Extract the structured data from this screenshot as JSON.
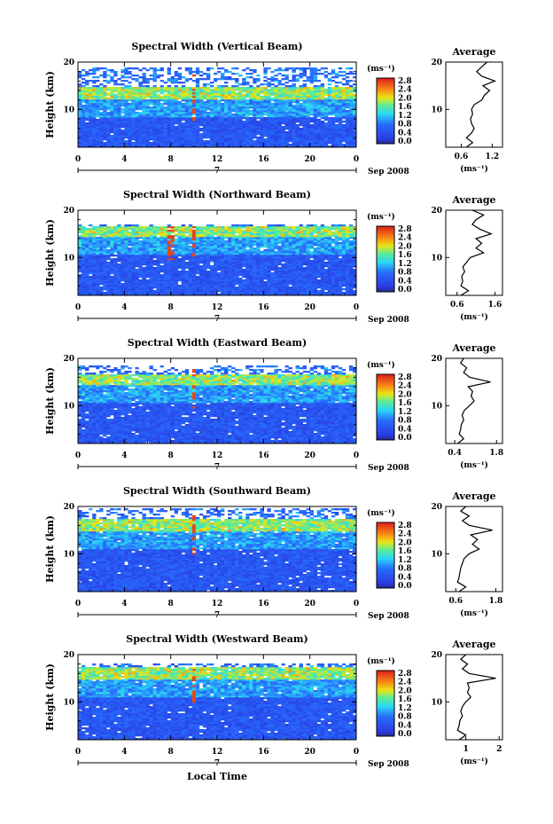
{
  "figure": {
    "xlabel": "Local Time",
    "ylabel": "Height (km)",
    "date_label": "Sep 2008",
    "day_label": "7",
    "colorbar_unit": "(ms⁻¹)",
    "colorbar_ticks": [
      "2.8",
      "2.4",
      "2.0",
      "1.6",
      "1.2",
      "0.8",
      "0.4",
      "0.0"
    ],
    "avg_title": "Average",
    "avg_xlabel": "(ms⁻¹)",
    "colors": {
      "low": "#3a2ab0",
      "blue": "#2850e8",
      "cyan": "#20d8f0",
      "yellow": "#f0e000",
      "red": "#e83820"
    }
  },
  "chart_data": [
    {
      "type": "heatmap",
      "title": "Spectral Width (Vertical Beam)",
      "x_ticks": [
        "0",
        "4",
        "8",
        "12",
        "16",
        "20",
        "0"
      ],
      "xlim": [
        0,
        24
      ],
      "ylim": [
        2,
        20
      ],
      "y_ticks": [
        "20",
        "10"
      ],
      "clim": [
        0,
        3.0
      ],
      "features": {
        "noise_top": 19,
        "layer_km": 13.5,
        "spike_hours": [
          10
        ]
      },
      "average": {
        "x_ticks": [
          "0.6",
          "1.2"
        ],
        "xlim": [
          0.3,
          1.4
        ],
        "profile": [
          [
            0.7,
            2
          ],
          [
            0.82,
            3
          ],
          [
            0.7,
            4
          ],
          [
            0.8,
            5
          ],
          [
            0.85,
            6
          ],
          [
            0.8,
            7
          ],
          [
            0.78,
            8
          ],
          [
            0.82,
            9
          ],
          [
            0.8,
            10
          ],
          [
            0.85,
            11
          ],
          [
            1.0,
            12
          ],
          [
            1.05,
            13
          ],
          [
            1.15,
            14
          ],
          [
            1.02,
            15
          ],
          [
            1.25,
            16
          ],
          [
            1.0,
            17
          ],
          [
            0.9,
            18
          ],
          [
            1.0,
            19
          ],
          [
            1.1,
            20
          ]
        ]
      }
    },
    {
      "type": "heatmap",
      "title": "Spectral Width (Northward Beam)",
      "x_ticks": [
        "0",
        "4",
        "8",
        "12",
        "16",
        "20",
        "0"
      ],
      "xlim": [
        0,
        24
      ],
      "ylim": [
        2,
        20
      ],
      "y_ticks": [
        "20",
        "10"
      ],
      "clim": [
        0,
        3.0
      ],
      "features": {
        "noise_top": 17,
        "layer_km": 15.5,
        "spike_hours": [
          8,
          10
        ]
      },
      "average": {
        "x_ticks": [
          "0.6",
          "1.6"
        ],
        "xlim": [
          0.3,
          1.8
        ],
        "profile": [
          [
            0.7,
            2
          ],
          [
            0.9,
            3
          ],
          [
            0.7,
            4
          ],
          [
            0.75,
            5
          ],
          [
            0.72,
            6
          ],
          [
            0.8,
            7
          ],
          [
            0.75,
            8
          ],
          [
            0.85,
            9
          ],
          [
            0.95,
            10
          ],
          [
            1.3,
            11
          ],
          [
            1.1,
            12
          ],
          [
            1.25,
            13
          ],
          [
            1.1,
            14
          ],
          [
            1.5,
            15
          ],
          [
            1.2,
            16
          ],
          [
            1.0,
            17
          ],
          [
            1.1,
            18
          ],
          [
            1.3,
            19
          ],
          [
            1.0,
            20
          ]
        ]
      }
    },
    {
      "type": "heatmap",
      "title": "Spectral Width (Eastward Beam)",
      "x_ticks": [
        "0",
        "4",
        "8",
        "12",
        "16",
        "20",
        "0"
      ],
      "xlim": [
        0,
        24
      ],
      "ylim": [
        2,
        20
      ],
      "y_ticks": [
        "20",
        "10"
      ],
      "clim": [
        0,
        3.0
      ],
      "features": {
        "noise_top": 18.5,
        "layer_km": 15.5,
        "spike_hours": [
          10
        ]
      },
      "average": {
        "x_ticks": [
          "0.4",
          "1.8"
        ],
        "xlim": [
          0.1,
          2.0
        ],
        "profile": [
          [
            0.5,
            2
          ],
          [
            0.7,
            3
          ],
          [
            0.55,
            4
          ],
          [
            0.6,
            5
          ],
          [
            0.62,
            6
          ],
          [
            0.7,
            7
          ],
          [
            0.65,
            8
          ],
          [
            0.72,
            9
          ],
          [
            0.9,
            10
          ],
          [
            1.05,
            11
          ],
          [
            0.95,
            12
          ],
          [
            1.0,
            13
          ],
          [
            0.85,
            14
          ],
          [
            1.6,
            15
          ],
          [
            0.9,
            16
          ],
          [
            0.7,
            17
          ],
          [
            0.8,
            18
          ],
          [
            0.6,
            19
          ],
          [
            0.7,
            20
          ]
        ]
      }
    },
    {
      "type": "heatmap",
      "title": "Spectral Width (Southward Beam)",
      "x_ticks": [
        "0",
        "4",
        "8",
        "12",
        "16",
        "20",
        "0"
      ],
      "xlim": [
        0,
        24
      ],
      "ylim": [
        2,
        20
      ],
      "y_ticks": [
        "20",
        "10"
      ],
      "clim": [
        0,
        3.0
      ],
      "features": {
        "noise_top": 19.5,
        "layer_km": 16,
        "spike_hours": [
          10
        ]
      },
      "average": {
        "x_ticks": [
          "0.6",
          "1.8"
        ],
        "xlim": [
          0.3,
          2.0
        ],
        "profile": [
          [
            0.7,
            2
          ],
          [
            0.9,
            3
          ],
          [
            0.65,
            4
          ],
          [
            0.7,
            5
          ],
          [
            0.72,
            6
          ],
          [
            0.75,
            7
          ],
          [
            0.8,
            8
          ],
          [
            0.85,
            9
          ],
          [
            1.0,
            10
          ],
          [
            1.3,
            11
          ],
          [
            1.1,
            12
          ],
          [
            1.25,
            13
          ],
          [
            1.05,
            14
          ],
          [
            1.7,
            15
          ],
          [
            1.0,
            16
          ],
          [
            0.8,
            17
          ],
          [
            1.0,
            18
          ],
          [
            0.75,
            19
          ],
          [
            0.9,
            20
          ]
        ]
      }
    },
    {
      "type": "heatmap",
      "title": "Spectral Width (Westward Beam)",
      "x_ticks": [
        "0",
        "4",
        "8",
        "12",
        "16",
        "20",
        "0"
      ],
      "xlim": [
        0,
        24
      ],
      "ylim": [
        2,
        20
      ],
      "y_ticks": [
        "20",
        "10"
      ],
      "clim": [
        0,
        3.0
      ],
      "features": {
        "noise_top": 18,
        "layer_km": 16,
        "spike_hours": [
          10
        ]
      },
      "average": {
        "x_ticks": [
          "1",
          "2"
        ],
        "xlim": [
          0.4,
          2.1
        ],
        "profile": [
          [
            0.8,
            2
          ],
          [
            1.0,
            3
          ],
          [
            0.75,
            4
          ],
          [
            0.8,
            5
          ],
          [
            0.82,
            6
          ],
          [
            0.9,
            7
          ],
          [
            0.85,
            8
          ],
          [
            0.9,
            9
          ],
          [
            1.0,
            10
          ],
          [
            1.15,
            11
          ],
          [
            1.05,
            12
          ],
          [
            1.1,
            13
          ],
          [
            1.05,
            14
          ],
          [
            1.9,
            15
          ],
          [
            1.1,
            16
          ],
          [
            0.9,
            17
          ],
          [
            1.05,
            18
          ],
          [
            0.85,
            19
          ],
          [
            1.0,
            20
          ]
        ]
      }
    }
  ]
}
